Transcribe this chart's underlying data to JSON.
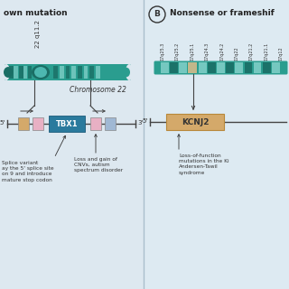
{
  "bg_color": "#dde8f0",
  "bg_color_B": "#ddeaf2",
  "divider_color": "#aabfcc",
  "panel_A": {
    "title": "own mutation",
    "chrom_label": "22 q11.2",
    "chrom_note": "Chromosome 22",
    "chrom_color": "#2a9d8f",
    "chrom_dark": "#1a6e65",
    "chrom_light": "#7ecdc6",
    "chrom_centro": "#4db8b0",
    "gene_box": "TBX1",
    "gene_box_color": "#2a7a9d",
    "gene_box_text_color": "#ffffff",
    "color_gold": "#d4a96a",
    "color_pink": "#e8b0c4",
    "color_blue": "#a0b8d4",
    "annotation1": "Splice variant\nay the 5' splice site\non 9 and introduce\nmature stop codon",
    "annotation2": "Loss and gain of\nCNVs, autism\nspectrum disorder"
  },
  "panel_B": {
    "title": "Nonsense or frameshif",
    "chrom_labels": [
      "17q25.3",
      "17q25.2",
      "17q25.1",
      "17q24.3",
      "17q24.2",
      "17q22",
      "17q21.2",
      "17q21.1",
      "17q12"
    ],
    "chrom_color": "#2a9d8f",
    "chrom_dark": "#1a6e65",
    "chrom_light": "#7ecdc6",
    "highlight_color": "#d4ba8a",
    "gene_box": "KCNJ2",
    "gene_box_color": "#d4a96a",
    "gene_box_border": "#b8883a",
    "gene_box_text_color": "#333333",
    "annotation": "Loss-of-function\nmutations in the Ki\nAndersen-Tawil\nsyndrome"
  }
}
